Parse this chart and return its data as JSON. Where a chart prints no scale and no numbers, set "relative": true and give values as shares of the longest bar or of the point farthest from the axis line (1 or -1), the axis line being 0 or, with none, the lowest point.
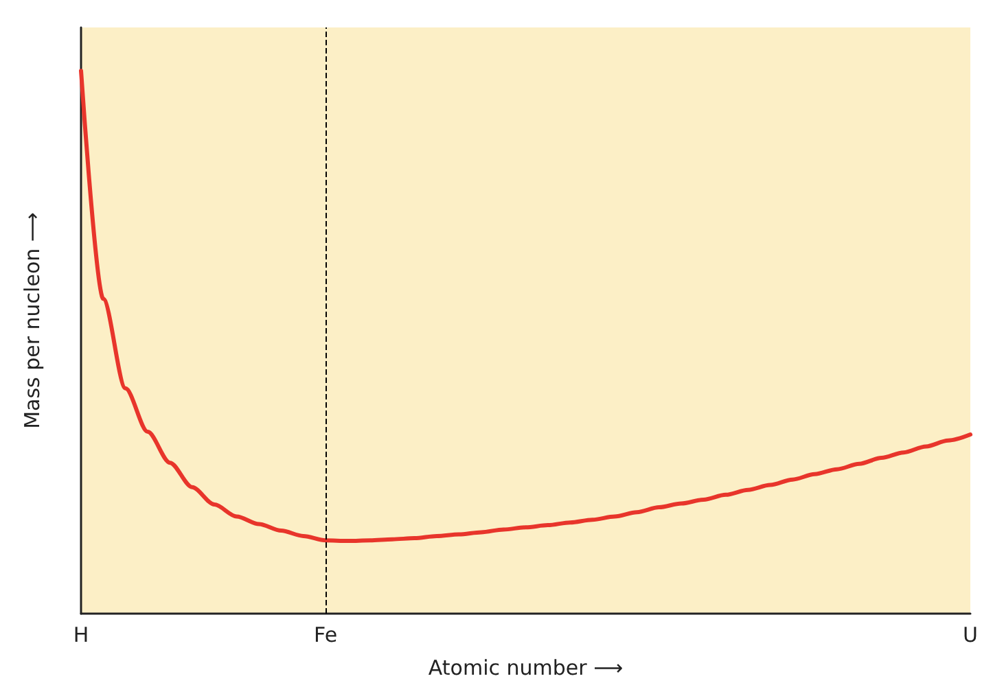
{
  "chart_data": {
    "type": "line",
    "xlabel": "Atomic number ⟶",
    "ylabel": "Mass per nucleon ⟶",
    "relative": true,
    "categories": [
      "H",
      null,
      null,
      null,
      null,
      null,
      null,
      null,
      null,
      null,
      null,
      "Fe",
      null,
      null,
      null,
      null,
      null,
      null,
      null,
      null,
      null,
      null,
      null,
      null,
      null,
      null,
      null,
      null,
      null,
      null,
      null,
      null,
      null,
      null,
      null,
      null,
      null,
      null,
      null,
      null,
      "U"
    ],
    "series": [
      {
        "color": "#e8352b",
        "values": [
          1,
          0.58,
          0.415,
          0.335,
          0.278,
          0.233,
          0.201,
          0.179,
          0.165,
          0.153,
          0.143,
          0.135,
          0.134,
          0.135,
          0.137,
          0.139,
          0.143,
          0.146,
          0.15,
          0.155,
          0.159,
          0.163,
          0.168,
          0.173,
          0.179,
          0.187,
          0.196,
          0.203,
          0.21,
          0.219,
          0.228,
          0.237,
          0.247,
          0.257,
          0.266,
          0.276,
          0.287,
          0.297,
          0.308,
          0.319,
          0.33
        ]
      }
    ],
    "ref_lines": [
      {
        "axis": "x",
        "value": "Fe",
        "color": "#000000",
        "line_style": "dashed"
      }
    ],
    "grid": false,
    "marker": "none",
    "line_style": "solid"
  }
}
